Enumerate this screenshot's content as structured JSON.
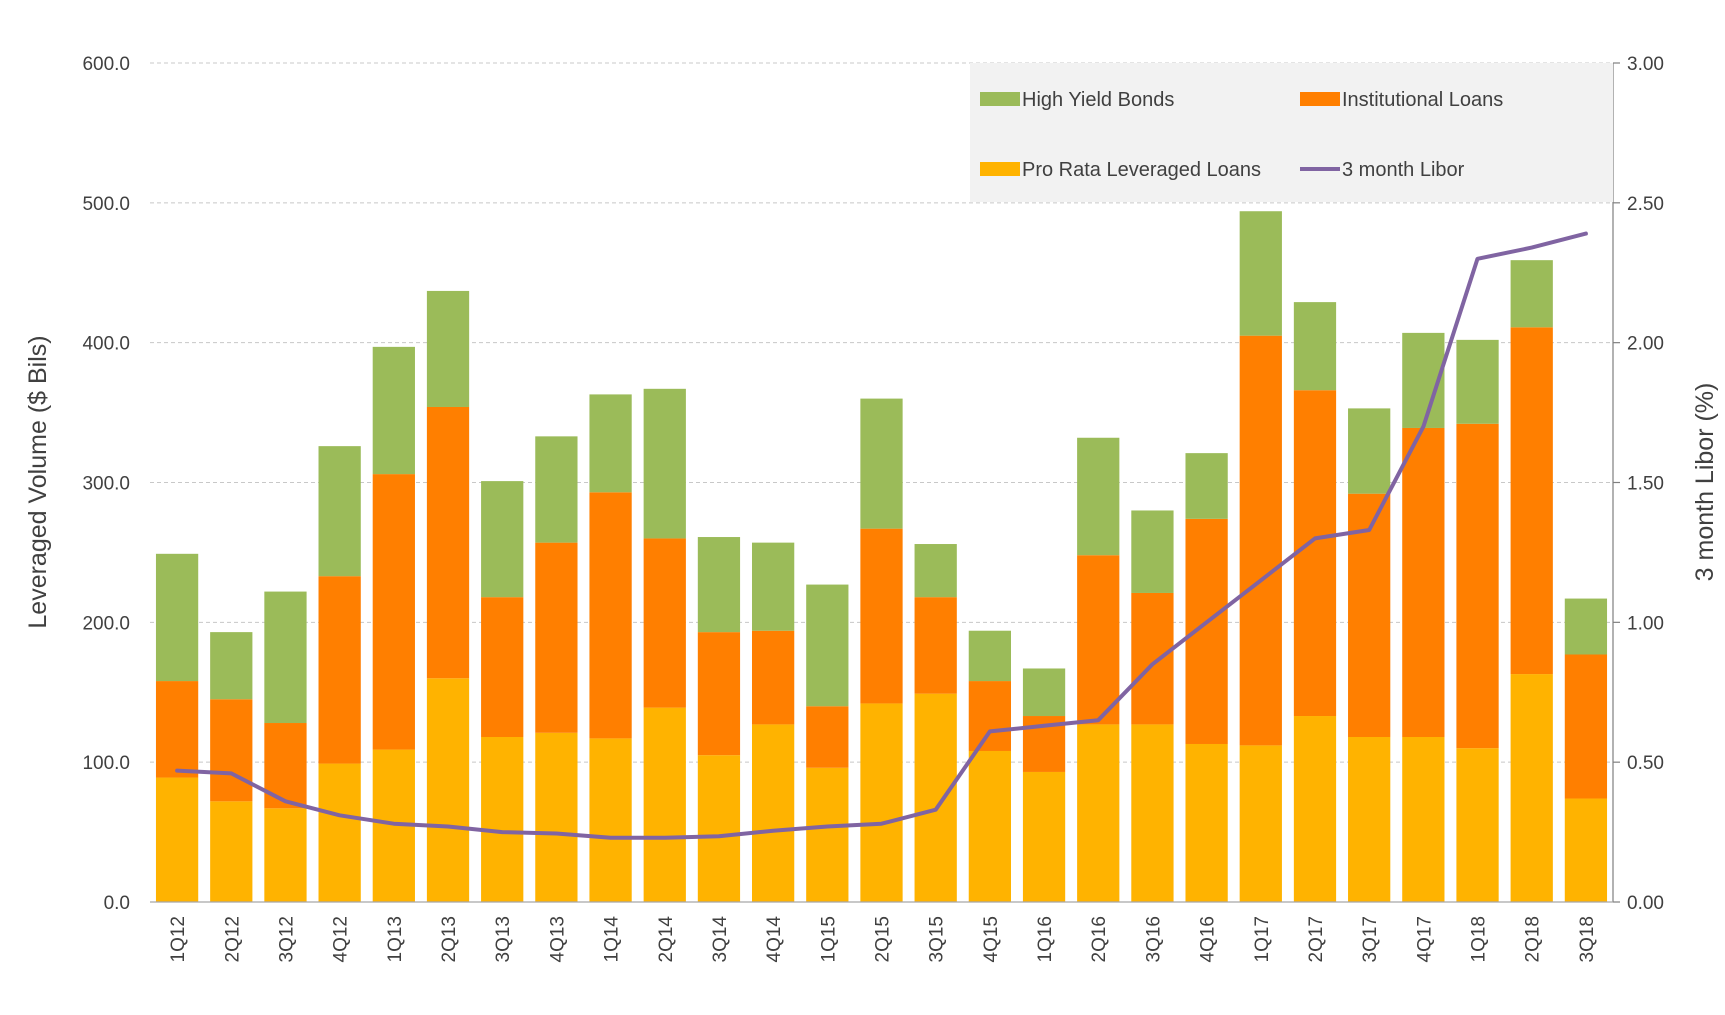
{
  "chart_data": {
    "type": "bar",
    "stacked": true,
    "categories": [
      "1Q12",
      "2Q12",
      "3Q12",
      "4Q12",
      "1Q13",
      "2Q13",
      "3Q13",
      "4Q13",
      "1Q14",
      "2Q14",
      "3Q14",
      "4Q14",
      "1Q15",
      "2Q15",
      "3Q15",
      "4Q15",
      "1Q16",
      "2Q16",
      "3Q16",
      "4Q16",
      "1Q17",
      "2Q17",
      "3Q17",
      "4Q17",
      "1Q18",
      "2Q18",
      "3Q18"
    ],
    "series": [
      {
        "name": "Pro Rata Leveraged Loans",
        "color": "#FFB300",
        "axis": "left",
        "values": [
          89,
          72,
          67,
          99,
          109,
          160,
          118,
          121,
          117,
          139,
          105,
          127,
          96,
          142,
          149,
          108,
          93,
          127,
          127,
          113,
          112,
          133,
          118,
          118,
          110,
          163,
          74
        ]
      },
      {
        "name": "Institutional  Loans",
        "color": "#FF7F00",
        "axis": "left",
        "values": [
          69,
          73,
          61,
          134,
          197,
          194,
          100,
          136,
          176,
          121,
          88,
          67,
          44,
          125,
          69,
          50,
          40,
          121,
          94,
          161,
          293,
          233,
          174,
          221,
          232,
          248,
          103
        ]
      },
      {
        "name": "High Yield Bonds",
        "color": "#9BBB59",
        "axis": "left",
        "values": [
          91,
          48,
          94,
          93,
          91,
          83,
          83,
          76,
          70,
          107,
          68,
          63,
          87,
          93,
          38,
          36,
          34,
          84,
          59,
          47,
          89,
          63,
          61,
          68,
          60,
          48,
          40
        ]
      }
    ],
    "line": {
      "name": "3 month Libor",
      "color": "#8064A2",
      "axis": "right",
      "values": [
        0.47,
        0.46,
        0.36,
        0.31,
        0.28,
        0.27,
        0.25,
        0.245,
        0.23,
        0.23,
        0.235,
        0.255,
        0.27,
        0.28,
        0.33,
        0.61,
        0.63,
        0.65,
        0.85,
        1.0,
        1.15,
        1.3,
        1.33,
        1.7,
        2.3,
        2.34,
        2.39
      ]
    },
    "ylabel": "Leveraged Volume ($ Bils)",
    "y2label": "3 month Libor (%)",
    "ylim": [
      0,
      600
    ],
    "y2lim": [
      0,
      3
    ],
    "yticks": [
      "0.0",
      "100.0",
      "200.0",
      "300.0",
      "400.0",
      "500.0",
      "600.0"
    ],
    "y2ticks": [
      "0.00",
      "0.50",
      "1.00",
      "1.50",
      "2.00",
      "2.50",
      "3.00"
    ],
    "grid": true,
    "legend_position": "top-right",
    "legend": [
      {
        "label": "High Yield Bonds",
        "color": "#9BBB59",
        "kind": "box"
      },
      {
        "label": "Institutional  Loans",
        "color": "#FF7F00",
        "kind": "box"
      },
      {
        "label": "Pro Rata Leveraged Loans",
        "color": "#FFB300",
        "kind": "box"
      },
      {
        "label": "3 month Libor",
        "color": "#8064A2",
        "kind": "line"
      }
    ]
  }
}
